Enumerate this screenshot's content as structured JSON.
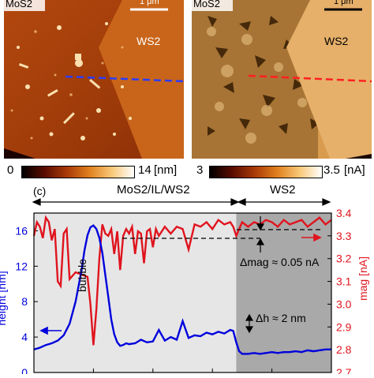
{
  "panel_a": {
    "material_left": "MoS2",
    "material_right": "WS2",
    "scalebar_label": "1 μm",
    "colorbar": {
      "min": "0",
      "max": "14",
      "unit": "[nm]"
    }
  },
  "panel_b": {
    "material_left": "MoS2",
    "material_right": "WS2",
    "scalebar_label": "1 μm",
    "colorbar": {
      "min": "3",
      "max": "3.5",
      "unit": "[nA]"
    }
  },
  "panel_c": {
    "panel_label": "(c)",
    "region_left": "MoS2/IL/WS2",
    "region_right": "WS2",
    "bubble_label": "bubble",
    "annotation_mag": "Δmag ≈ 0.05 nA",
    "annotation_h": "Δh ≈ 2 nm",
    "colors": {
      "height": "#0000dd",
      "mag": "#e0141e",
      "region_right_bg": "#a9a9a9",
      "region_left_bg": "#e6e6e6"
    }
  },
  "chart_data": {
    "type": "line",
    "xlabel": "",
    "ylabel_left": "height [nm]",
    "ylabel_right": "mag [nA]",
    "ylim_left": [
      0,
      18
    ],
    "ylim_right": [
      2.7,
      3.4
    ],
    "yticks_left": [
      "0",
      "4",
      "8",
      "12",
      "16"
    ],
    "yticks_right": [
      "2.7",
      "2.8",
      "2.9",
      "3.0",
      "3.1",
      "3.2",
      "3.3",
      "3.4"
    ],
    "xlim": [
      0,
      100
    ],
    "region_boundary_x": 68,
    "series": [
      {
        "axis": "left",
        "x": [
          0,
          2,
          4,
          6,
          8,
          10,
          12,
          14,
          16,
          17,
          18,
          19,
          20,
          21,
          22,
          23,
          24,
          25,
          26,
          27,
          28,
          29,
          30,
          31,
          32,
          34,
          36,
          38,
          40,
          42,
          44,
          46,
          48,
          50,
          52,
          54,
          56,
          58,
          60,
          62,
          64,
          66,
          67,
          68,
          69,
          70,
          72,
          74,
          76,
          78,
          80,
          82,
          84,
          86,
          88,
          90,
          92,
          94,
          96,
          98,
          100
        ],
        "values": [
          2.6,
          2.8,
          3.1,
          3.3,
          3.6,
          4.2,
          5.5,
          8,
          11.5,
          13.8,
          15.5,
          16.4,
          16.6,
          16.2,
          15.2,
          13.5,
          11,
          8.5,
          6,
          4.3,
          3.4,
          3.0,
          3.1,
          3.3,
          3.2,
          3.3,
          3.7,
          3.4,
          3.5,
          4.8,
          3.6,
          4.0,
          3.7,
          5.8,
          3.9,
          4.2,
          4.1,
          4.5,
          4.3,
          4.6,
          4.4,
          4.8,
          4.7,
          3.4,
          2.4,
          2.1,
          2.1,
          2.2,
          2.1,
          2.2,
          2.3,
          2.2,
          2.3,
          2.3,
          2.4,
          2.3,
          2.5,
          2.4,
          2.5,
          2.6,
          2.6
        ]
      },
      {
        "axis": "right",
        "x": [
          0,
          1,
          2,
          3,
          4,
          5,
          6,
          7,
          8,
          9,
          10,
          11,
          12,
          14,
          16,
          18,
          19,
          20,
          21,
          22,
          23,
          24,
          25,
          26,
          27,
          28,
          29,
          30,
          31,
          32,
          33,
          34,
          35,
          36,
          37,
          38,
          39,
          40,
          41,
          42,
          44,
          46,
          48,
          50,
          52,
          54,
          56,
          58,
          60,
          62,
          64,
          66,
          67,
          68,
          69,
          70,
          72,
          74,
          76,
          78,
          80,
          82,
          84,
          86,
          88,
          90,
          92,
          94,
          96,
          98,
          100
        ],
        "values": [
          3.3,
          3.36,
          3.34,
          3.29,
          3.38,
          3.36,
          3.28,
          3.33,
          3.1,
          3.08,
          3.31,
          3.33,
          3.11,
          3.14,
          3.13,
          3.12,
          3.0,
          2.82,
          2.98,
          3.2,
          3.35,
          3.31,
          3.3,
          3.33,
          3.22,
          3.32,
          3.15,
          3.3,
          3.33,
          3.31,
          3.34,
          3.22,
          3.32,
          3.31,
          3.18,
          3.32,
          3.33,
          3.25,
          3.33,
          3.3,
          3.34,
          3.31,
          3.34,
          3.33,
          3.24,
          3.35,
          3.34,
          3.36,
          3.33,
          3.37,
          3.35,
          3.36,
          3.34,
          3.3,
          3.33,
          3.36,
          3.34,
          3.36,
          3.35,
          3.37,
          3.36,
          3.34,
          3.37,
          3.35,
          3.36,
          3.37,
          3.34,
          3.36,
          3.38,
          3.35,
          3.37
        ]
      }
    ]
  }
}
